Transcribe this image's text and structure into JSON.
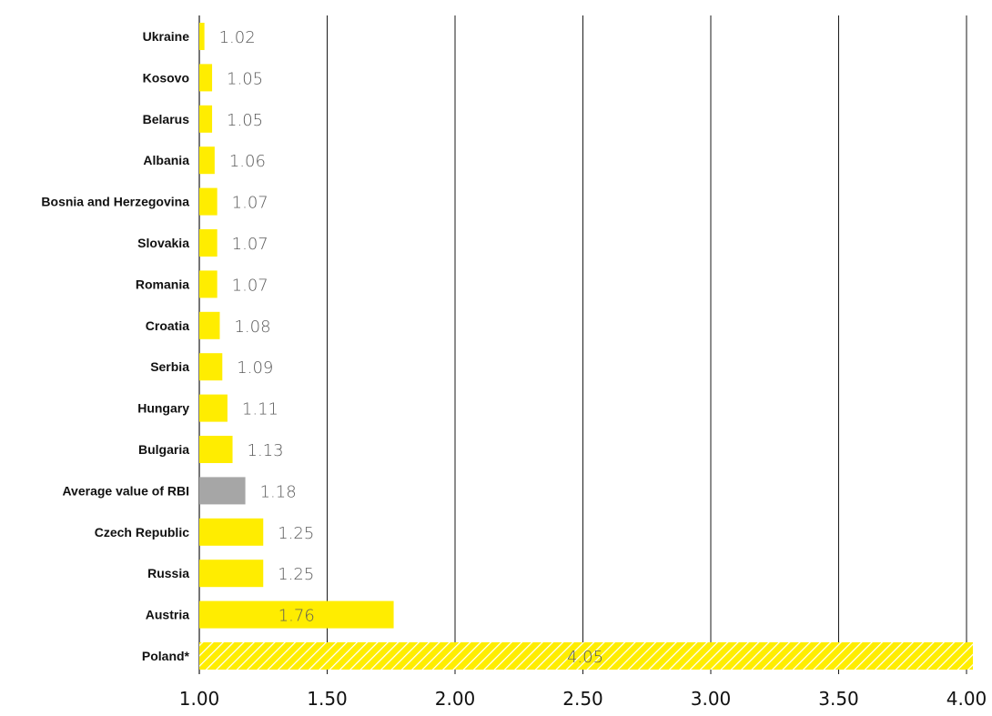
{
  "chart_data": {
    "type": "bar",
    "orientation": "horizontal",
    "categories": [
      "Ukraine",
      "Kosovo",
      "Belarus",
      "Albania",
      "Bosnia and Herzegovina",
      "Slovakia",
      "Romania",
      "Croatia",
      "Serbia",
      "Hungary",
      "Bulgaria",
      "Average value of RBI",
      "Czech Republic",
      "Russia",
      "Austria",
      "Poland*"
    ],
    "values": [
      1.02,
      1.05,
      1.05,
      1.06,
      1.07,
      1.07,
      1.07,
      1.08,
      1.09,
      1.11,
      1.13,
      1.18,
      1.25,
      1.25,
      1.76,
      4.05
    ],
    "value_labels": [
      "1.02",
      "1.05",
      "1.05",
      "1.06",
      "1.07",
      "1.07",
      "1.07",
      "1.08",
      "1.09",
      "1.11",
      "1.13",
      "1.18",
      "1.25",
      "1.25",
      "1.76",
      "4.05"
    ],
    "bar_styles": [
      "solid",
      "solid",
      "solid",
      "solid",
      "solid",
      "solid",
      "solid",
      "solid",
      "solid",
      "solid",
      "solid",
      "average",
      "solid",
      "solid",
      "solid",
      "hatched"
    ],
    "xlim": [
      1.0,
      4.0
    ],
    "xticks": [
      1.0,
      1.5,
      2.0,
      2.5,
      3.0,
      3.5,
      4.0
    ],
    "xtick_labels": [
      "1.00",
      "1.50",
      "2.00",
      "2.50",
      "3.00",
      "3.50",
      "4.00"
    ],
    "grid": true,
    "title": "",
    "xlabel": "",
    "ylabel": "",
    "colors": {
      "bar": "#ffed00",
      "average": "#a6a6a6",
      "hatch_line": "#ffffff",
      "grid": "#1a1a1a",
      "value_label": "#5a5a5a",
      "category_label": "#111111"
    }
  }
}
